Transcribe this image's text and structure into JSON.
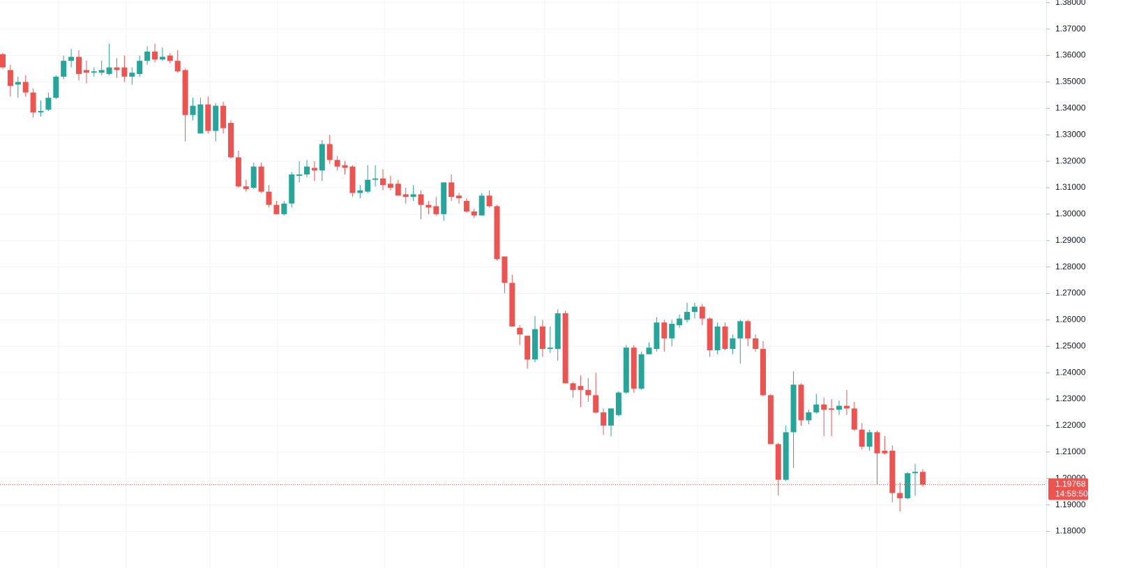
{
  "chart_data": {
    "type": "candlestick",
    "up_color": "#26a69a",
    "down_color": "#ef5350",
    "grid": true,
    "ylim": [
      1.173,
      1.381
    ],
    "yticks": [
      {
        "value": 1.18,
        "label": "1.18000"
      },
      {
        "value": 1.19,
        "label": "1.19000"
      },
      {
        "value": 1.2,
        "label": "1.20000"
      },
      {
        "value": 1.21,
        "label": "1.21000"
      },
      {
        "value": 1.22,
        "label": "1.22000"
      },
      {
        "value": 1.23,
        "label": "1.23000"
      },
      {
        "value": 1.24,
        "label": "1.24000"
      },
      {
        "value": 1.25,
        "label": "1.25000"
      },
      {
        "value": 1.26,
        "label": "1.26000"
      },
      {
        "value": 1.27,
        "label": "1.27000"
      },
      {
        "value": 1.28,
        "label": "1.28000"
      },
      {
        "value": 1.29,
        "label": "1.29000"
      },
      {
        "value": 1.3,
        "label": "1.30000"
      },
      {
        "value": 1.31,
        "label": "1.31000"
      },
      {
        "value": 1.32,
        "label": "1.32000"
      },
      {
        "value": 1.33,
        "label": "1.33000"
      },
      {
        "value": 1.34,
        "label": "1.34000"
      },
      {
        "value": 1.35,
        "label": "1.35000"
      },
      {
        "value": 1.36,
        "label": "1.36000"
      },
      {
        "value": 1.37,
        "label": "1.37000"
      },
      {
        "value": 1.38,
        "label": "1.38000"
      }
    ],
    "last_price": {
      "value": 1.19768,
      "countdown": "14:58:50",
      "color": "#ef5350"
    },
    "open": [
      1.3605,
      1.3545,
      1.349,
      1.35,
      1.346,
      1.3385,
      1.3395,
      1.344,
      1.352,
      1.358,
      1.3595,
      1.3545,
      1.3535,
      1.3535,
      1.353,
      1.3555,
      1.3555,
      1.352,
      1.353,
      1.358,
      1.3615,
      1.3585,
      1.36,
      1.358,
      1.3545,
      1.3375,
      1.3305,
      1.3415,
      1.3315,
      1.341,
      1.3345,
      1.3215,
      1.3105,
      1.31,
      1.318,
      1.3085,
      1.3035,
      1.3,
      1.304,
      1.3145,
      1.315,
      1.3175,
      1.3165,
      1.3265,
      1.3205,
      1.3185,
      1.318,
      1.308,
      1.3085,
      1.313,
      1.3135,
      1.3115,
      1.3115,
      1.3075,
      1.3065,
      1.3075,
      1.3035,
      1.303,
      1.3,
      1.312,
      1.307,
      1.305,
      1.301,
      1.2995,
      1.307,
      1.303,
      1.284,
      1.274,
      1.257,
      1.254,
      1.245,
      1.2575,
      1.249,
      1.249,
      1.2625,
      1.236,
      1.235,
      1.2335,
      1.2315,
      1.225,
      1.22,
      1.224,
      1.2325,
      1.2495,
      1.234,
      1.247,
      1.249,
      1.259,
      1.253,
      1.258,
      1.26,
      1.263,
      1.265,
      1.2605,
      1.2485,
      1.2575,
      1.249,
      1.253,
      1.2595,
      1.253,
      1.249,
      1.2315,
      1.213,
      1.1995,
      1.2175,
      1.2355,
      1.222,
      1.225,
      1.228,
      1.2265,
      1.226,
      1.2275,
      1.2265,
      1.2185,
      1.212,
      1.2175,
      1.2105,
      1.2105,
      1.1945,
      1.1925,
      1.202,
      1.2025
    ],
    "high": [
      1.361,
      1.3565,
      1.352,
      1.3525,
      1.3475,
      1.343,
      1.346,
      1.3525,
      1.36,
      1.3625,
      1.362,
      1.358,
      1.3555,
      1.358,
      1.3645,
      1.359,
      1.36,
      1.3555,
      1.36,
      1.3635,
      1.3645,
      1.363,
      1.361,
      1.362,
      1.355,
      1.344,
      1.344,
      1.3445,
      1.342,
      1.3425,
      1.3355,
      1.324,
      1.313,
      1.3195,
      1.3195,
      1.311,
      1.305,
      1.305,
      1.316,
      1.32,
      1.3205,
      1.32,
      1.328,
      1.33,
      1.322,
      1.32,
      1.3185,
      1.311,
      1.3185,
      1.3185,
      1.317,
      1.3145,
      1.313,
      1.31,
      1.311,
      1.309,
      1.305,
      1.3065,
      1.312,
      1.315,
      1.308,
      1.306,
      1.302,
      1.308,
      1.309,
      1.3035,
      1.284,
      1.277,
      1.258,
      1.254,
      1.2615,
      1.26,
      1.2575,
      1.264,
      1.2635,
      1.2365,
      1.239,
      1.238,
      1.24,
      1.2265,
      1.2265,
      1.233,
      1.2505,
      1.2505,
      1.248,
      1.2515,
      1.261,
      1.26,
      1.26,
      1.262,
      1.2665,
      1.2665,
      1.266,
      1.261,
      1.259,
      1.259,
      1.2545,
      1.26,
      1.26,
      1.2545,
      1.252,
      1.232,
      1.2135,
      1.22,
      1.2405,
      1.236,
      1.226,
      1.232,
      1.2305,
      1.23,
      1.2295,
      1.2335,
      1.229,
      1.221,
      1.2185,
      1.218,
      1.216,
      1.2125,
      1.1985,
      1.2025,
      1.2055,
      1.2035
    ],
    "low": [
      1.355,
      1.3445,
      1.344,
      1.3445,
      1.3365,
      1.337,
      1.339,
      1.3435,
      1.351,
      1.3555,
      1.3505,
      1.3495,
      1.352,
      1.3525,
      1.3525,
      1.3515,
      1.35,
      1.349,
      1.352,
      1.3565,
      1.3575,
      1.358,
      1.357,
      1.3535,
      1.3275,
      1.3355,
      1.3305,
      1.3305,
      1.3275,
      1.3305,
      1.321,
      1.31,
      1.3085,
      1.3095,
      1.308,
      1.3025,
      1.3,
      1.2995,
      1.3025,
      1.312,
      1.314,
      1.3125,
      1.3125,
      1.319,
      1.3165,
      1.315,
      1.3065,
      1.306,
      1.308,
      1.3105,
      1.309,
      1.309,
      1.307,
      1.304,
      1.305,
      1.298,
      1.3,
      1.2995,
      1.2975,
      1.305,
      1.304,
      1.3005,
      1.2985,
      1.2995,
      1.3025,
      1.2825,
      1.27,
      1.2575,
      1.2505,
      1.2415,
      1.244,
      1.246,
      1.2475,
      1.2445,
      1.236,
      1.2305,
      1.227,
      1.229,
      1.2245,
      1.2165,
      1.216,
      1.2235,
      1.232,
      1.2325,
      1.2335,
      1.247,
      1.248,
      1.248,
      1.25,
      1.257,
      1.259,
      1.2605,
      1.258,
      1.246,
      1.247,
      1.2485,
      1.247,
      1.2435,
      1.25,
      1.248,
      1.231,
      1.213,
      1.1935,
      1.199,
      1.204,
      1.22,
      1.2205,
      1.2245,
      1.216,
      1.216,
      1.224,
      1.224,
      1.218,
      1.211,
      1.2105,
      1.1975,
      1.209,
      1.191,
      1.1875,
      1.192,
      1.1935,
      1.197
    ],
    "close": [
      1.3555,
      1.3485,
      1.35,
      1.346,
      1.3385,
      1.339,
      1.344,
      1.352,
      1.358,
      1.3595,
      1.353,
      1.3535,
      1.354,
      1.3545,
      1.3555,
      1.3545,
      1.352,
      1.3535,
      1.358,
      1.3615,
      1.3585,
      1.3595,
      1.358,
      1.354,
      1.3375,
      1.341,
      1.3415,
      1.3315,
      1.341,
      1.3325,
      1.3215,
      1.3105,
      1.3095,
      1.318,
      1.3085,
      1.3035,
      1.3,
      1.304,
      1.315,
      1.315,
      1.318,
      1.3165,
      1.3265,
      1.3205,
      1.318,
      1.3175,
      1.308,
      1.309,
      1.313,
      1.3135,
      1.311,
      1.31,
      1.307,
      1.3065,
      1.3075,
      1.3035,
      1.3025,
      1.3,
      1.312,
      1.3065,
      1.306,
      1.301,
      1.2995,
      1.307,
      1.303,
      1.283,
      1.274,
      1.2575,
      1.2545,
      1.245,
      1.2565,
      1.249,
      1.2495,
      1.2625,
      1.236,
      1.2335,
      1.2335,
      1.2315,
      1.225,
      1.22,
      1.2265,
      1.2325,
      1.2495,
      1.234,
      1.247,
      1.2495,
      1.259,
      1.253,
      1.2585,
      1.2605,
      1.263,
      1.265,
      1.2605,
      1.2485,
      1.2575,
      1.249,
      1.253,
      1.2595,
      1.253,
      1.249,
      1.2315,
      1.213,
      1.1995,
      1.2175,
      1.2355,
      1.222,
      1.225,
      1.228,
      1.226,
      1.226,
      1.2275,
      1.2265,
      1.2185,
      1.212,
      1.2175,
      1.2095,
      1.2095,
      1.1945,
      1.1925,
      1.202,
      1.2025,
      1.19768
    ]
  }
}
